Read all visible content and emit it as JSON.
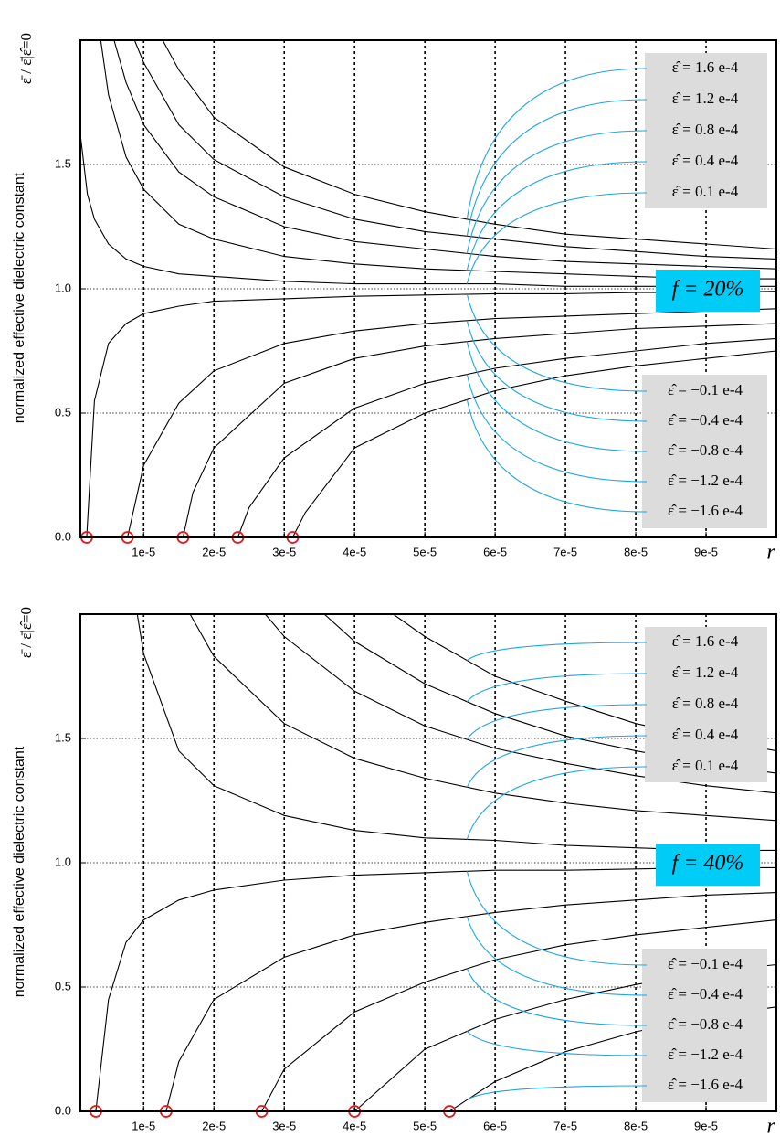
{
  "chart_data": [
    {
      "type": "line",
      "annotation": "f = 20%",
      "ylabel": "normalized effective dielectric constant",
      "ylabel_symbol": "ε̄ / ε̄|ε̂=0",
      "xlabel": "r",
      "xlim": [
        1e-06,
        0.0001
      ],
      "ylim": [
        0,
        2
      ],
      "grid": true,
      "root_color": "#e8141c",
      "xticks": [
        {
          "value": 1e-05,
          "label": "1e-5"
        },
        {
          "value": 2e-05,
          "label": "2e-5"
        },
        {
          "value": 3e-05,
          "label": "3e-5"
        },
        {
          "value": 4e-05,
          "label": "4e-5"
        },
        {
          "value": 5e-05,
          "label": "5e-5"
        },
        {
          "value": 6e-05,
          "label": "6e-5"
        },
        {
          "value": 7e-05,
          "label": "7e-5"
        },
        {
          "value": 8e-05,
          "label": "8e-5"
        },
        {
          "value": 9e-05,
          "label": "9e-5"
        }
      ],
      "yticks": [
        {
          "value": 0,
          "label": "0.0"
        },
        0.5,
        {
          "value": 1,
          "label": "1.0"
        },
        1.5
      ],
      "series": [
        {
          "name": "ε̂ = 1.6 e-4",
          "color": "#000000",
          "x": [
            1.27e-05,
            1.5e-05,
            2e-05,
            3e-05,
            4e-05,
            5e-05,
            6e-05,
            7e-05,
            8e-05,
            9e-05,
            0.0001
          ],
          "values": [
            2,
            1.88,
            1.69,
            1.49,
            1.38,
            1.31,
            1.26,
            1.22,
            1.2,
            1.18,
            1.16
          ]
        },
        {
          "name": "ε̂ = 1.2 e-4",
          "color": "#000000",
          "x": [
            8.7e-06,
            1e-05,
            1.5e-05,
            2e-05,
            3e-05,
            4e-05,
            5e-05,
            6e-05,
            7e-05,
            8e-05,
            9e-05,
            0.0001
          ],
          "values": [
            2,
            1.91,
            1.66,
            1.52,
            1.37,
            1.28,
            1.23,
            1.2,
            1.17,
            1.15,
            1.13,
            1.12
          ]
        },
        {
          "name": "ε̂ = 0.8 e-4",
          "color": "#000000",
          "x": [
            5.8e-06,
            7.5e-06,
            1e-05,
            1.5e-05,
            2e-05,
            3e-05,
            4e-05,
            5e-05,
            6e-05,
            7e-05,
            8e-05,
            9e-05,
            0.0001
          ],
          "values": [
            2,
            1.83,
            1.66,
            1.47,
            1.37,
            1.25,
            1.19,
            1.16,
            1.13,
            1.11,
            1.1,
            1.09,
            1.08
          ]
        },
        {
          "name": "ε̂ = 0.4 e-4",
          "color": "#000000",
          "x": [
            3.9e-06,
            5e-06,
            7.5e-06,
            1e-05,
            1.5e-05,
            2e-05,
            3e-05,
            4e-05,
            5e-05,
            6e-05,
            7e-05,
            8e-05,
            9e-05,
            0.0001
          ],
          "values": [
            2,
            1.78,
            1.53,
            1.4,
            1.26,
            1.2,
            1.13,
            1.1,
            1.08,
            1.07,
            1.06,
            1.05,
            1.04,
            1.04
          ]
        },
        {
          "name": "ε̂ = 0.1 e-4",
          "color": "#000000",
          "x": [
            1e-06,
            2e-06,
            3e-06,
            5e-06,
            7.5e-06,
            1e-05,
            1.5e-05,
            2e-05,
            3e-05,
            4e-05,
            5e-05,
            6e-05,
            7e-05,
            8e-05,
            9e-05,
            0.0001
          ],
          "values": [
            1.62,
            1.38,
            1.28,
            1.18,
            1.12,
            1.09,
            1.06,
            1.05,
            1.03,
            1.02,
            1.02,
            1.02,
            1.01,
            1.01,
            1.01,
            1.01
          ]
        },
        {
          "name": "ε̂ = −0.1 e-4",
          "color": "#000000",
          "x": [
            1.9e-06,
            3e-06,
            5e-06,
            7.5e-06,
            1e-05,
            1.5e-05,
            2e-05,
            3e-05,
            4e-05,
            5e-05,
            6e-05,
            7e-05,
            8e-05,
            9e-05,
            0.0001
          ],
          "values": [
            0,
            0.55,
            0.78,
            0.86,
            0.9,
            0.93,
            0.95,
            0.96,
            0.97,
            0.975,
            0.98,
            0.98,
            0.985,
            0.985,
            0.99
          ]
        },
        {
          "name": "ε̂ = −0.4 e-4",
          "color": "#000000",
          "x": [
            7.7e-06,
            1e-05,
            1.5e-05,
            2e-05,
            3e-05,
            4e-05,
            5e-05,
            6e-05,
            7e-05,
            8e-05,
            9e-05,
            0.0001
          ],
          "values": [
            0,
            0.29,
            0.54,
            0.67,
            0.78,
            0.83,
            0.86,
            0.88,
            0.89,
            0.9,
            0.91,
            0.92
          ]
        },
        {
          "name": "ε̂ = −0.8 e-4",
          "color": "#000000",
          "x": [
            1.56e-05,
            1.7e-05,
            2e-05,
            3e-05,
            4e-05,
            5e-05,
            6e-05,
            7e-05,
            8e-05,
            9e-05,
            0.0001
          ],
          "values": [
            0,
            0.18,
            0.36,
            0.62,
            0.72,
            0.77,
            0.8,
            0.82,
            0.84,
            0.85,
            0.86
          ]
        },
        {
          "name": "ε̂ = −1.2 e-4",
          "color": "#000000",
          "x": [
            2.34e-05,
            2.5e-05,
            3e-05,
            4e-05,
            5e-05,
            6e-05,
            7e-05,
            8e-05,
            9e-05,
            0.0001
          ],
          "values": [
            0,
            0.12,
            0.32,
            0.52,
            0.62,
            0.68,
            0.72,
            0.75,
            0.78,
            0.8
          ]
        },
        {
          "name": "ε̂ = −1.6 e-4",
          "color": "#000000",
          "x": [
            3.12e-05,
            3.3e-05,
            4e-05,
            5e-05,
            6e-05,
            7e-05,
            8e-05,
            9e-05,
            0.0001
          ],
          "values": [
            0,
            0.1,
            0.36,
            0.5,
            0.59,
            0.65,
            0.69,
            0.72,
            0.75
          ]
        }
      ]
    },
    {
      "type": "line",
      "annotation": "f = 40%",
      "ylabel": "normalized effective dielectric constant",
      "ylabel_symbol": "ε̄ / ε̄|ε̂=0",
      "xlabel": "r",
      "xlim": [
        1e-06,
        0.0001
      ],
      "ylim": [
        0,
        2
      ],
      "grid": true,
      "root_color": "#e8141c",
      "xticks": [
        {
          "value": 1e-05,
          "label": "1e-5"
        },
        {
          "value": 2e-05,
          "label": "2e-5"
        },
        {
          "value": 3e-05,
          "label": "3e-5"
        },
        {
          "value": 4e-05,
          "label": "4e-5"
        },
        {
          "value": 5e-05,
          "label": "5e-5"
        },
        {
          "value": 6e-05,
          "label": "6e-5"
        },
        {
          "value": 7e-05,
          "label": "7e-5"
        },
        {
          "value": 8e-05,
          "label": "8e-5"
        },
        {
          "value": 9e-05,
          "label": "9e-5"
        }
      ],
      "yticks": [
        {
          "value": 0,
          "label": "0.0"
        },
        0.5,
        {
          "value": 1,
          "label": "1.0"
        },
        1.5
      ],
      "series": [
        {
          "name": "ε̂ = 1.6 e-4",
          "color": "#000000",
          "x": [
            4.55e-05,
            5e-05,
            6e-05,
            7e-05,
            8e-05,
            9e-05,
            0.0001
          ],
          "values": [
            2,
            1.91,
            1.75,
            1.65,
            1.56,
            1.5,
            1.45
          ]
        },
        {
          "name": "ε̂ = 1.2 e-4",
          "color": "#000000",
          "x": [
            3.57e-05,
            4e-05,
            5e-05,
            6e-05,
            7e-05,
            8e-05,
            9e-05,
            0.0001
          ],
          "values": [
            2,
            1.89,
            1.72,
            1.6,
            1.51,
            1.45,
            1.4,
            1.36
          ]
        },
        {
          "name": "ε̂ = 0.8 e-4",
          "color": "#000000",
          "x": [
            2.73e-05,
            3e-05,
            4e-05,
            5e-05,
            6e-05,
            7e-05,
            8e-05,
            9e-05,
            0.0001
          ],
          "values": [
            2,
            1.91,
            1.69,
            1.55,
            1.46,
            1.4,
            1.35,
            1.31,
            1.28
          ]
        },
        {
          "name": "ε̂ = 0.4 e-4",
          "color": "#000000",
          "x": [
            1.66e-05,
            2e-05,
            3e-05,
            4e-05,
            5e-05,
            6e-05,
            7e-05,
            8e-05,
            9e-05,
            0.0001
          ],
          "values": [
            2,
            1.83,
            1.56,
            1.42,
            1.34,
            1.28,
            1.24,
            1.21,
            1.19,
            1.17
          ]
        },
        {
          "name": "ε̂ = 0.1 e-4",
          "color": "#000000",
          "x": [
            9.1e-06,
            1e-05,
            1.5e-05,
            2e-05,
            3e-05,
            4e-05,
            5e-05,
            6e-05,
            7e-05,
            8e-05,
            9e-05,
            0.0001
          ],
          "values": [
            2,
            1.84,
            1.45,
            1.31,
            1.19,
            1.13,
            1.1,
            1.09,
            1.07,
            1.06,
            1.05,
            1.05
          ]
        },
        {
          "name": "ε̂ = −0.1 e-4",
          "color": "#000000",
          "x": [
            3.2e-06,
            5e-06,
            7.5e-06,
            1e-05,
            1.5e-05,
            2e-05,
            3e-05,
            4e-05,
            5e-05,
            6e-05,
            7e-05,
            8e-05,
            9e-05,
            0.0001
          ],
          "values": [
            0,
            0.45,
            0.68,
            0.77,
            0.85,
            0.89,
            0.93,
            0.95,
            0.96,
            0.97,
            0.97,
            0.975,
            0.98,
            0.98
          ]
        },
        {
          "name": "ε̂ = −0.4 e-4",
          "color": "#000000",
          "x": [
            1.32e-05,
            1.5e-05,
            2e-05,
            3e-05,
            4e-05,
            5e-05,
            6e-05,
            7e-05,
            8e-05,
            9e-05,
            0.0001
          ],
          "values": [
            0,
            0.2,
            0.45,
            0.62,
            0.71,
            0.76,
            0.8,
            0.83,
            0.85,
            0.87,
            0.88
          ]
        },
        {
          "name": "ε̂ = −0.8 e-4",
          "color": "#000000",
          "x": [
            2.68e-05,
            3e-05,
            4e-05,
            5e-05,
            6e-05,
            7e-05,
            8e-05,
            9e-05,
            0.0001
          ],
          "values": [
            0,
            0.17,
            0.4,
            0.52,
            0.61,
            0.67,
            0.71,
            0.74,
            0.77
          ]
        },
        {
          "name": "ε̂ = −1.2 e-4",
          "color": "#000000",
          "x": [
            4e-05,
            5e-05,
            6e-05,
            7e-05,
            8e-05,
            9e-05,
            0.0001
          ],
          "values": [
            0,
            0.25,
            0.37,
            0.45,
            0.51,
            0.56,
            0.59
          ]
        },
        {
          "name": "ε̂ = −1.6 e-4",
          "color": "#000000",
          "x": [
            5.35e-05,
            6e-05,
            7e-05,
            8e-05,
            9e-05,
            0.0001
          ],
          "values": [
            0,
            0.12,
            0.24,
            0.32,
            0.38,
            0.42
          ]
        }
      ]
    }
  ]
}
